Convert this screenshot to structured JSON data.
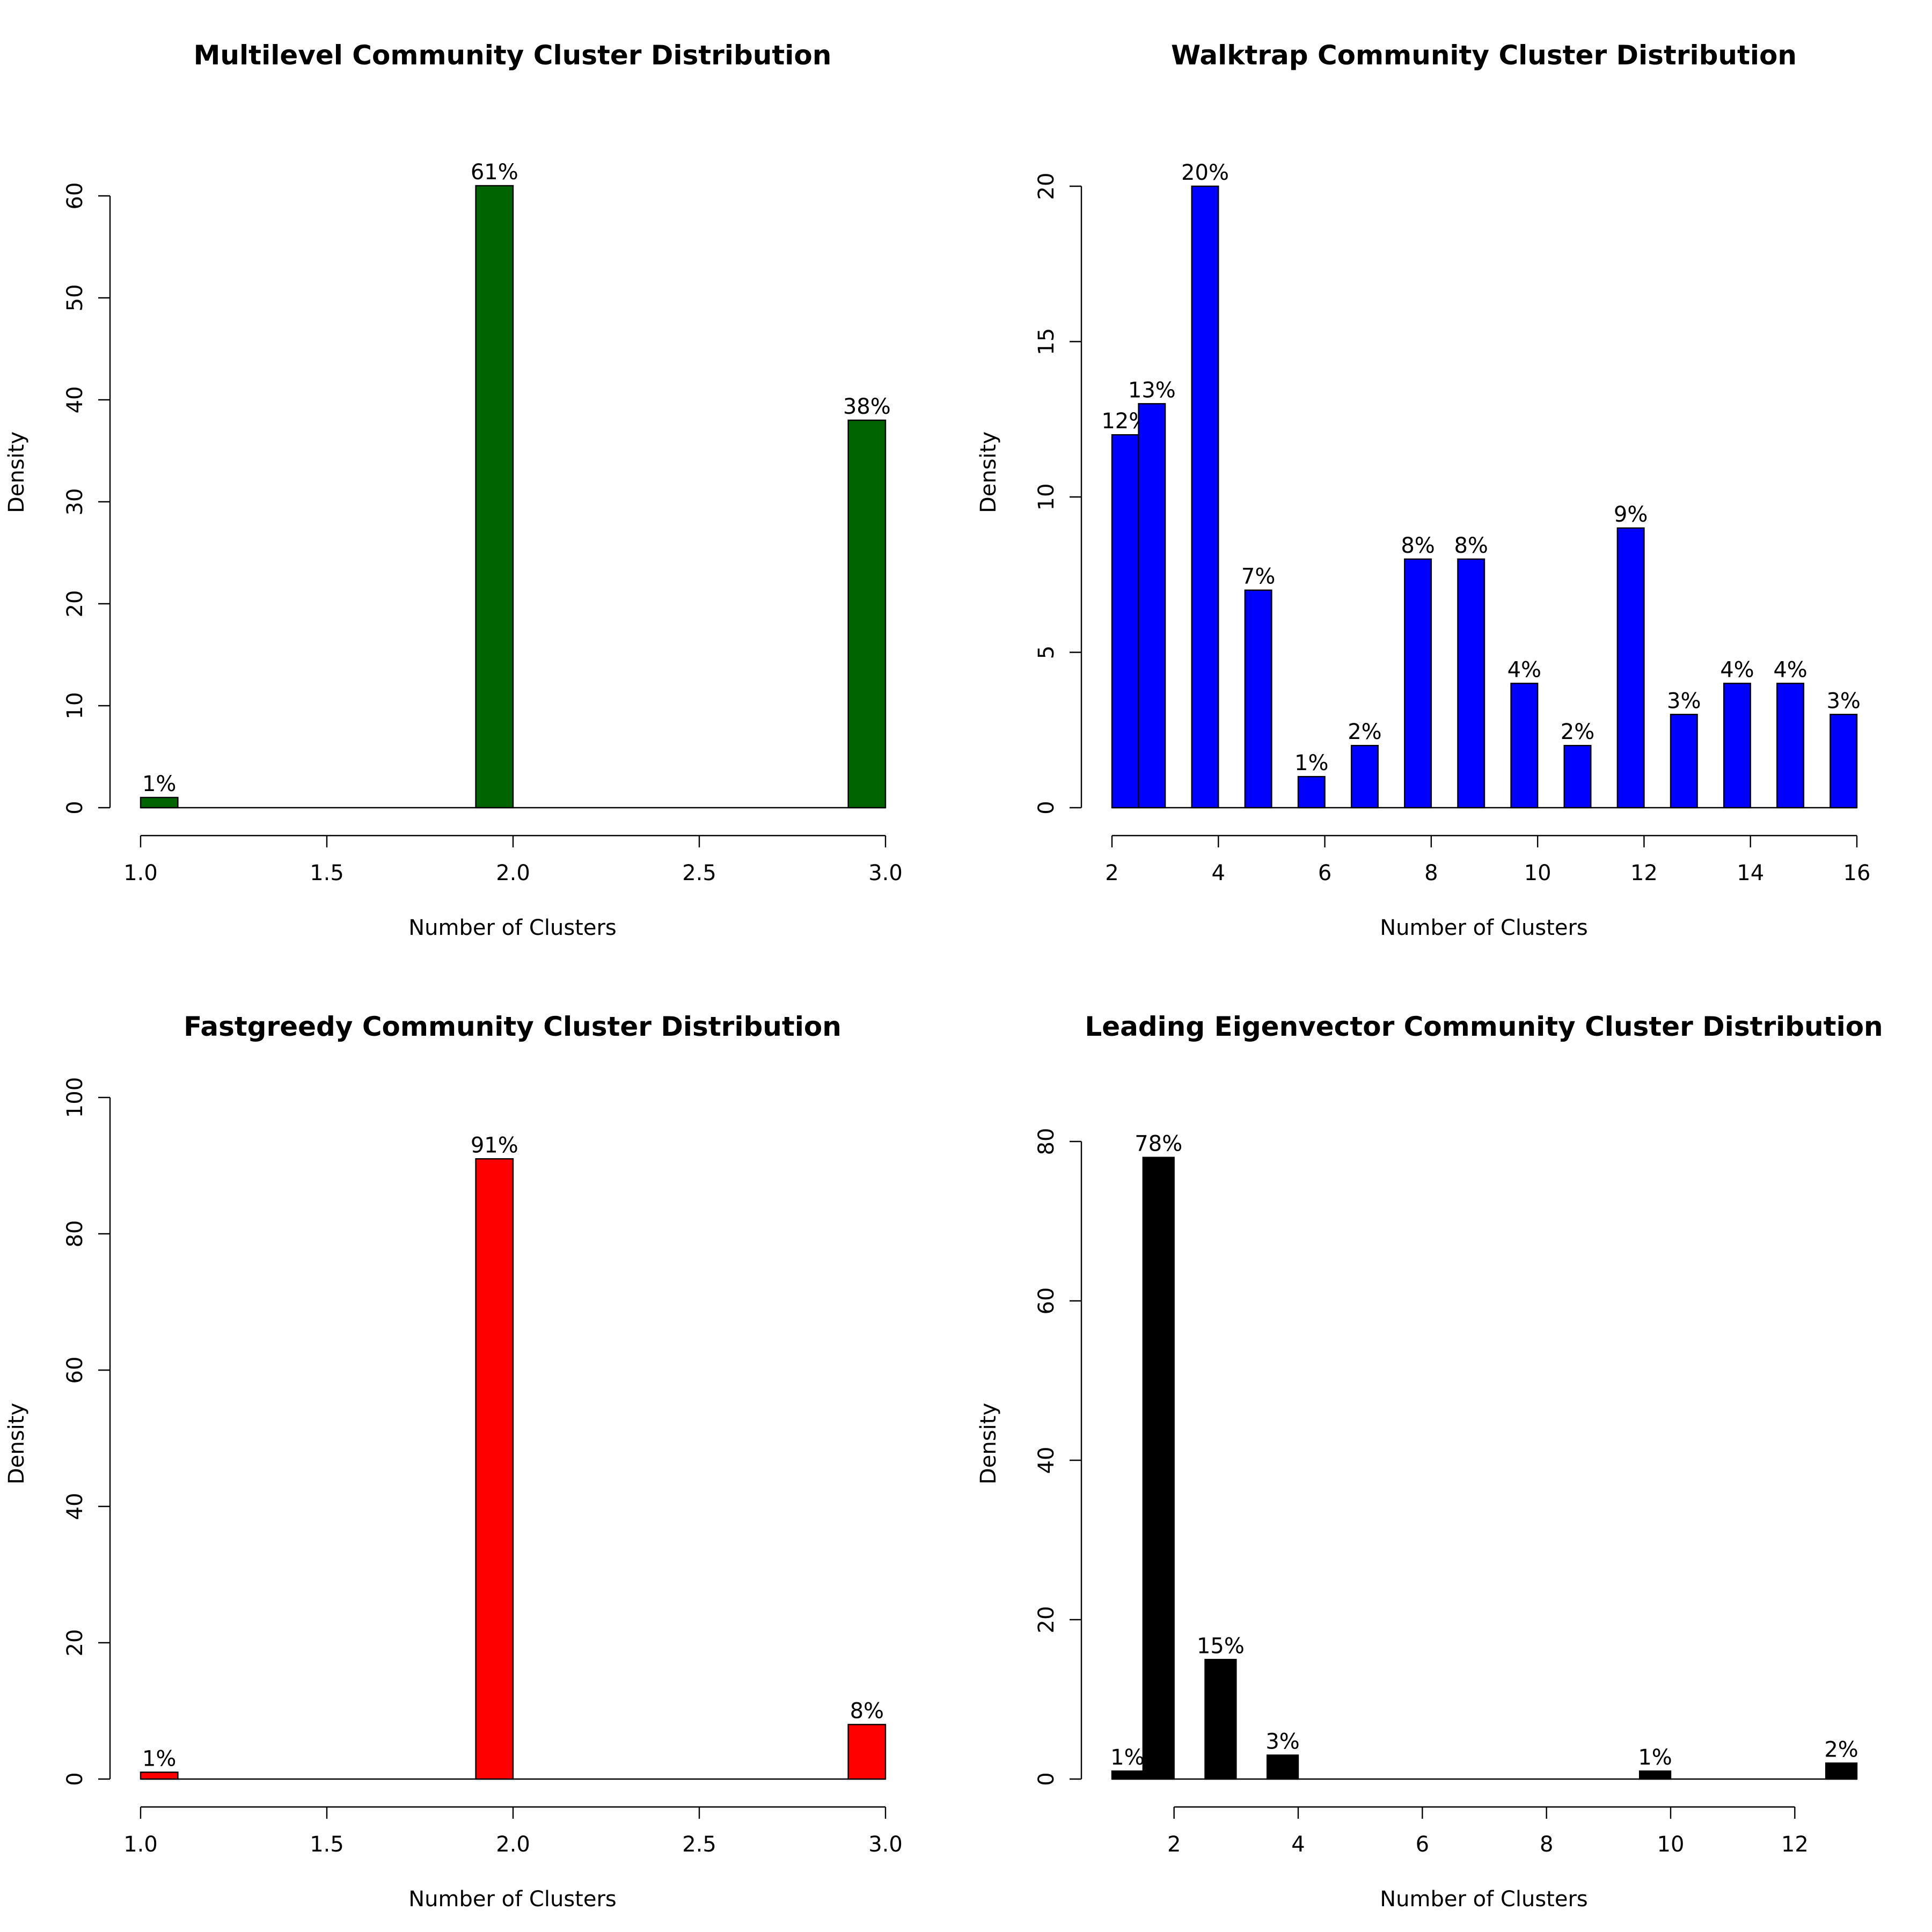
{
  "chart_data": [
    {
      "type": "bar",
      "title": "Multilevel Community Cluster Distribution",
      "xlabel": "Number of Clusters",
      "ylabel": "Density",
      "bar_color": "#006400",
      "xlim": [
        1.0,
        3.0
      ],
      "ylim": [
        0,
        60
      ],
      "xticks": [
        1.0,
        1.5,
        2.0,
        2.5,
        3.0
      ],
      "xtick_labels": [
        "1.0",
        "1.5",
        "2.0",
        "2.5",
        "3.0"
      ],
      "yticks": [
        0,
        10,
        20,
        30,
        40,
        50,
        60
      ],
      "ytick_labels": [
        "0",
        "10",
        "20",
        "30",
        "40",
        "50",
        "60"
      ],
      "bars": [
        {
          "x_start": 1.0,
          "x_end": 1.1,
          "value": 1,
          "label": "1%"
        },
        {
          "x_start": 1.9,
          "x_end": 2.0,
          "value": 61,
          "label": "61%"
        },
        {
          "x_start": 2.9,
          "x_end": 3.0,
          "value": 38,
          "label": "38%"
        }
      ]
    },
    {
      "type": "bar",
      "title": "Walktrap Community Cluster Distribution",
      "xlabel": "Number of Clusters",
      "ylabel": "Density",
      "bar_color": "#0000ff",
      "xlim": [
        2,
        16
      ],
      "ylim": [
        0,
        20
      ],
      "xticks": [
        2,
        4,
        6,
        8,
        10,
        12,
        14,
        16
      ],
      "xtick_labels": [
        "2",
        "4",
        "6",
        "8",
        "10",
        "12",
        "14",
        "16"
      ],
      "yticks": [
        0,
        5,
        10,
        15,
        20
      ],
      "ytick_labels": [
        "0",
        "5",
        "10",
        "15",
        "20"
      ],
      "bars": [
        {
          "x_start": 2.0,
          "x_end": 2.5,
          "value": 12,
          "label": "12%"
        },
        {
          "x_start": 2.5,
          "x_end": 3.0,
          "value": 13,
          "label": "13%"
        },
        {
          "x_start": 3.5,
          "x_end": 4.0,
          "value": 20,
          "label": "20%"
        },
        {
          "x_start": 4.5,
          "x_end": 5.0,
          "value": 7,
          "label": "7%"
        },
        {
          "x_start": 5.5,
          "x_end": 6.0,
          "value": 1,
          "label": "1%"
        },
        {
          "x_start": 6.5,
          "x_end": 7.0,
          "value": 2,
          "label": "2%"
        },
        {
          "x_start": 7.5,
          "x_end": 8.0,
          "value": 8,
          "label": "8%"
        },
        {
          "x_start": 8.5,
          "x_end": 9.0,
          "value": 8,
          "label": "8%"
        },
        {
          "x_start": 9.5,
          "x_end": 10.0,
          "value": 4,
          "label": "4%"
        },
        {
          "x_start": 10.5,
          "x_end": 11.0,
          "value": 2,
          "label": "2%"
        },
        {
          "x_start": 11.5,
          "x_end": 12.0,
          "value": 9,
          "label": "9%"
        },
        {
          "x_start": 12.5,
          "x_end": 13.0,
          "value": 3,
          "label": "3%"
        },
        {
          "x_start": 13.5,
          "x_end": 14.0,
          "value": 4,
          "label": "4%"
        },
        {
          "x_start": 14.5,
          "x_end": 15.0,
          "value": 4,
          "label": "4%"
        },
        {
          "x_start": 15.5,
          "x_end": 16.0,
          "value": 3,
          "label": "3%"
        }
      ]
    },
    {
      "type": "bar",
      "title": "Fastgreedy Community Cluster Distribution",
      "xlabel": "Number of Clusters",
      "ylabel": "Density",
      "bar_color": "#ff0000",
      "xlim": [
        1.0,
        3.0
      ],
      "ylim": [
        0,
        100
      ],
      "xticks": [
        1.0,
        1.5,
        2.0,
        2.5,
        3.0
      ],
      "xtick_labels": [
        "1.0",
        "1.5",
        "2.0",
        "2.5",
        "3.0"
      ],
      "yticks": [
        0,
        20,
        40,
        60,
        80,
        100
      ],
      "ytick_labels": [
        "0",
        "20",
        "40",
        "60",
        "80",
        "100"
      ],
      "bars": [
        {
          "x_start": 1.0,
          "x_end": 1.1,
          "value": 1,
          "label": "1%"
        },
        {
          "x_start": 1.9,
          "x_end": 2.0,
          "value": 91,
          "label": "91%"
        },
        {
          "x_start": 2.9,
          "x_end": 3.0,
          "value": 8,
          "label": "8%"
        }
      ]
    },
    {
      "type": "bar",
      "title": "Leading Eigenvector Community Cluster Distribution",
      "xlabel": "Number of Clusters",
      "ylabel": "Density",
      "bar_color": "#000000",
      "xlim": [
        1,
        12
      ],
      "ylim": [
        0,
        80
      ],
      "xticks": [
        2,
        4,
        6,
        8,
        10,
        12
      ],
      "xtick_labels": [
        "2",
        "4",
        "6",
        "8",
        "10",
        "12"
      ],
      "yticks": [
        0,
        20,
        40,
        60,
        80
      ],
      "ytick_labels": [
        "0",
        "20",
        "40",
        "60",
        "80"
      ],
      "bars": [
        {
          "x_start": 1.0,
          "x_end": 1.5,
          "value": 1,
          "label": "1%"
        },
        {
          "x_start": 1.5,
          "x_end": 2.0,
          "value": 78,
          "label": "78%"
        },
        {
          "x_start": 2.5,
          "x_end": 3.0,
          "value": 15,
          "label": "15%"
        },
        {
          "x_start": 3.5,
          "x_end": 4.0,
          "value": 3,
          "label": "3%"
        },
        {
          "x_start": 9.5,
          "x_end": 10.0,
          "value": 1,
          "label": "1%"
        },
        {
          "x_start": 12.5,
          "x_end": 13.0,
          "value": 2,
          "label": "2%"
        }
      ]
    }
  ]
}
